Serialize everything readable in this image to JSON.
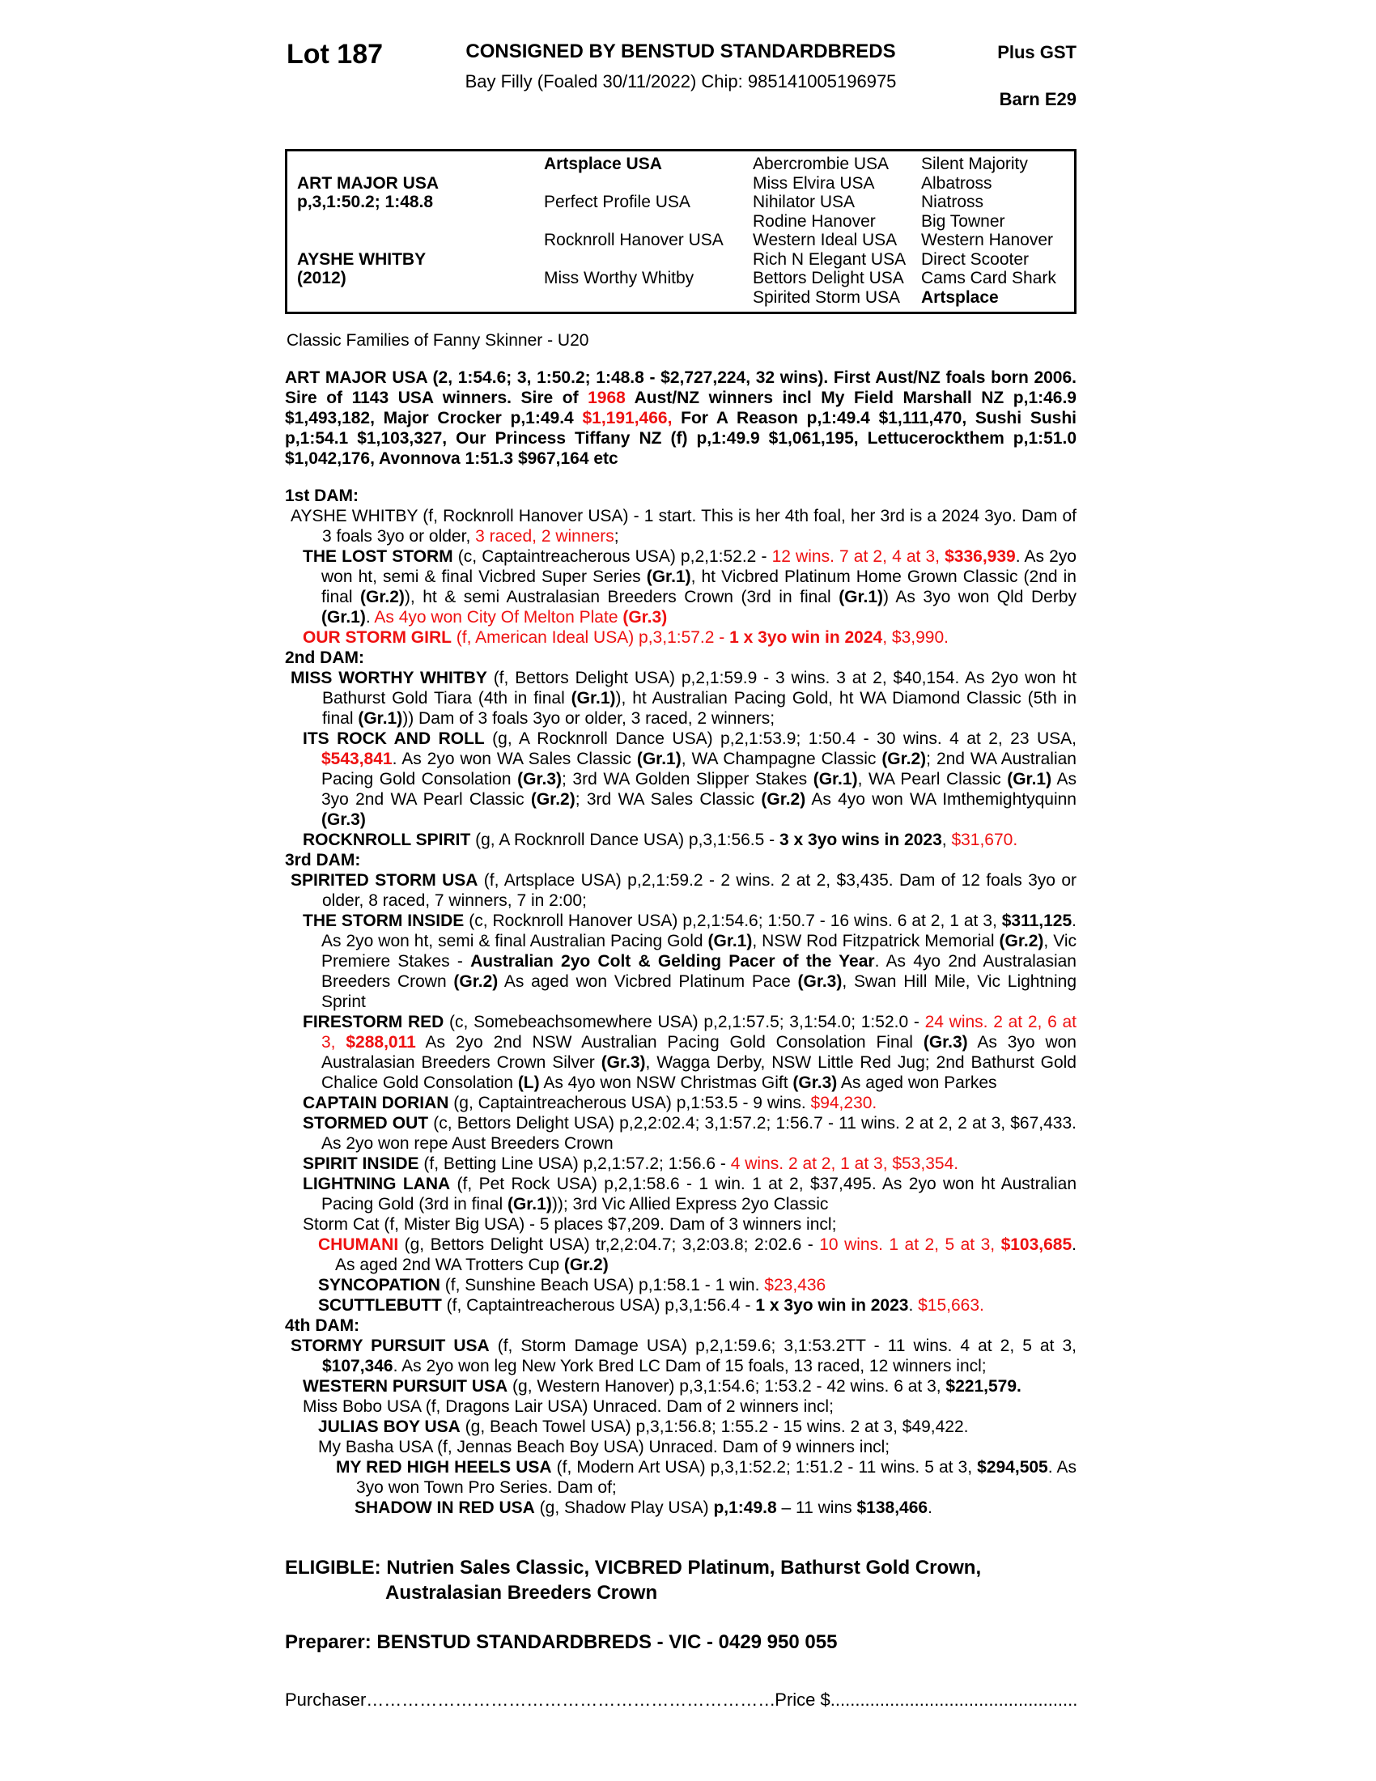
{
  "colors": {
    "background": "#ffffff",
    "text": "#000000",
    "accent_red": "#ee1111"
  },
  "header": {
    "lot": "Lot 187",
    "consigned": "CONSIGNED BY BENSTUD STANDARDBREDS",
    "subtitle": "Bay Filly (Foaled 30/11/2022) Chip: 985141005196975",
    "plus_gst": "Plus GST",
    "barn": "Barn E29"
  },
  "pedigree": {
    "col1": [
      {
        "lines": [
          "ART MAJOR USA",
          "p,3,1:50.2; 1:48.8"
        ]
      },
      {
        "lines": [
          "AYSHE WHITBY",
          "(2012)"
        ]
      }
    ],
    "col2": [
      "Artsplace USA",
      "Perfect Profile USA",
      "Rocknroll Hanover USA",
      "Miss Worthy Whitby"
    ],
    "col2_bold": [
      true,
      false,
      false,
      false
    ],
    "col3": [
      "Abercrombie USA",
      "Miss Elvira USA",
      "Nihilator USA",
      "Rodine Hanover",
      "Western Ideal USA",
      "Rich N Elegant USA",
      "Bettors Delight USA",
      "Spirited Storm USA"
    ],
    "col4": [
      "Silent Majority",
      "Albatross",
      "Niatross",
      "Big Towner",
      "Western Hanover",
      "Direct Scooter",
      "Cams Card Shark",
      "Artsplace"
    ],
    "col4_bold": [
      false,
      false,
      false,
      false,
      false,
      false,
      false,
      true
    ]
  },
  "family_line": "Classic Families of Fanny Skinner - U20",
  "sire_paragraph": [
    {
      "t": "ART MAJOR USA (2, 1:54.6; 3, 1:50.2; 1:48.8 - $2,727,224, 32 wins). First Aust/NZ foals born 2006. Sire of 1143 USA winners. Sire of ",
      "s": "b"
    },
    {
      "t": "1968",
      "s": "br"
    },
    {
      "t": " Aust/NZ winners incl My Field Marshall NZ p,1:46.9 $1,493,182, Major Crocker p,1:49.4 ",
      "s": "b"
    },
    {
      "t": "$1,191,466,",
      "s": "br"
    },
    {
      "t": " For A Reason p,1:49.4 $1,111,470, Sushi Sushi p,1:54.1 $1,103,327, Our Princess Tiffany NZ (f) p,1:49.9 $1,061,195, Lettucerockthem p,1:51.0 $1,042,176, Avonnova 1:51.3 $967,164 etc",
      "s": "b"
    }
  ],
  "sections": [
    {
      "heading": "1st DAM:",
      "entries": [
        {
          "indent": "dam",
          "segments": [
            {
              "t": "AYSHE WHITBY (f, Rocknroll Hanover USA) - 1 start. This is her 4th foal, her 3rd is a 2024 3yo. Dam of 3 foals 3yo or older, ",
              "s": ""
            },
            {
              "t": "3 raced, 2 winners",
              "s": "r"
            },
            {
              "t": ";",
              "s": ""
            }
          ]
        },
        {
          "indent": "p1",
          "segments": [
            {
              "t": "THE LOST STORM",
              "s": "b"
            },
            {
              "t": " (c, Captaintreacherous USA) p,2,1:52.2 - ",
              "s": ""
            },
            {
              "t": "12 wins. 7 at 2, 4 at 3, ",
              "s": "r"
            },
            {
              "t": "$336,939",
              "s": "br"
            },
            {
              "t": ". As 2yo won ht, semi & final Vicbred Super Series ",
              "s": ""
            },
            {
              "t": "(Gr.1)",
              "s": "b"
            },
            {
              "t": ", ht Vicbred Platinum Home Grown Classic (2nd in final ",
              "s": ""
            },
            {
              "t": "(Gr.2)",
              "s": "b"
            },
            {
              "t": "), ht & semi Australasian Breeders Crown (3rd in final ",
              "s": ""
            },
            {
              "t": "(Gr.1)",
              "s": "b"
            },
            {
              "t": ") As 3yo won Qld Derby ",
              "s": ""
            },
            {
              "t": "(Gr.1)",
              "s": "b"
            },
            {
              "t": ". ",
              "s": ""
            },
            {
              "t": "As 4yo won City Of Melton Plate ",
              "s": "r"
            },
            {
              "t": "(Gr.3)",
              "s": "br"
            }
          ]
        },
        {
          "indent": "p1",
          "segments": [
            {
              "t": "OUR STORM GIRL",
              "s": "br"
            },
            {
              "t": " (f, American Ideal USA) p,3,1:57.2 - ",
              "s": "r"
            },
            {
              "t": "1 x 3yo win in 2024",
              "s": "br"
            },
            {
              "t": ", $3,990.",
              "s": "r"
            }
          ]
        }
      ]
    },
    {
      "heading": "2nd DAM:",
      "entries": [
        {
          "indent": "dam",
          "segments": [
            {
              "t": "MISS WORTHY WHITBY",
              "s": "b"
            },
            {
              "t": " (f, Bettors Delight USA) p,2,1:59.9 - 3 wins. 3 at 2, $40,154. As 2yo won ht Bathurst Gold Tiara (4th in final ",
              "s": ""
            },
            {
              "t": "(Gr.1)",
              "s": "b"
            },
            {
              "t": "), ht Australian Pacing Gold, ht WA Diamond Classic (5th in final ",
              "s": ""
            },
            {
              "t": "(Gr.1)",
              "s": "b"
            },
            {
              "t": ")) Dam of 3 foals 3yo or older, 3 raced, 2 winners;",
              "s": ""
            }
          ]
        },
        {
          "indent": "p1",
          "segments": [
            {
              "t": "ITS ROCK AND ROLL",
              "s": "b"
            },
            {
              "t": " (g, A Rocknroll Dance USA) p,2,1:53.9; 1:50.4 - 30 wins. 4 at 2, 23 USA, ",
              "s": ""
            },
            {
              "t": "$543,841",
              "s": "br"
            },
            {
              "t": ". As 2yo won WA Sales Classic ",
              "s": ""
            },
            {
              "t": "(Gr.1)",
              "s": "b"
            },
            {
              "t": ", WA Champagne Classic ",
              "s": ""
            },
            {
              "t": "(Gr.2)",
              "s": "b"
            },
            {
              "t": "; 2nd WA Australian Pacing Gold Consolation ",
              "s": ""
            },
            {
              "t": "(Gr.3)",
              "s": "b"
            },
            {
              "t": "; 3rd WA Golden Slipper Stakes ",
              "s": ""
            },
            {
              "t": "(Gr.1)",
              "s": "b"
            },
            {
              "t": ", WA Pearl Classic ",
              "s": ""
            },
            {
              "t": "(Gr.1)",
              "s": "b"
            },
            {
              "t": " As 3yo 2nd WA Pearl Classic ",
              "s": ""
            },
            {
              "t": "(Gr.2)",
              "s": "b"
            },
            {
              "t": "; 3rd WA Sales Classic ",
              "s": ""
            },
            {
              "t": "(Gr.2)",
              "s": "b"
            },
            {
              "t": " As 4yo won WA Imthemightyquinn ",
              "s": ""
            },
            {
              "t": "(Gr.3)",
              "s": "b"
            }
          ]
        },
        {
          "indent": "p1",
          "segments": [
            {
              "t": "ROCKNROLL SPIRIT",
              "s": "b"
            },
            {
              "t": " (g, A Rocknroll Dance USA) p,3,1:56.5 - ",
              "s": ""
            },
            {
              "t": "3 x 3yo wins in 2023",
              "s": "b"
            },
            {
              "t": ", ",
              "s": ""
            },
            {
              "t": "$31,670.",
              "s": "r"
            }
          ]
        }
      ]
    },
    {
      "heading": "3rd DAM:",
      "entries": [
        {
          "indent": "dam",
          "segments": [
            {
              "t": "SPIRITED STORM USA",
              "s": "b"
            },
            {
              "t": " (f, Artsplace USA) p,2,1:59.2 - 2 wins. 2 at 2, $3,435. Dam of 12 foals 3yo or older, 8 raced, 7 winners, 7 in 2:00;",
              "s": ""
            }
          ]
        },
        {
          "indent": "p1",
          "segments": [
            {
              "t": "THE STORM INSIDE",
              "s": "b"
            },
            {
              "t": " (c, Rocknroll Hanover USA) p,2,1:54.6; 1:50.7 - 16 wins. 6 at 2, 1 at 3, ",
              "s": ""
            },
            {
              "t": "$311,125",
              "s": "b"
            },
            {
              "t": ". As 2yo won ht, semi & final Australian Pacing Gold ",
              "s": ""
            },
            {
              "t": "(Gr.1)",
              "s": "b"
            },
            {
              "t": ", NSW Rod Fitzpatrick Memorial ",
              "s": ""
            },
            {
              "t": "(Gr.2)",
              "s": "b"
            },
            {
              "t": ", Vic Premiere Stakes - ",
              "s": ""
            },
            {
              "t": "Australian 2yo Colt & Gelding Pacer of the Year",
              "s": "b"
            },
            {
              "t": ". As 4yo 2nd Australasian Breeders Crown ",
              "s": ""
            },
            {
              "t": "(Gr.2)",
              "s": "b"
            },
            {
              "t": " As aged won Vicbred Platinum Pace ",
              "s": ""
            },
            {
              "t": "(Gr.3)",
              "s": "b"
            },
            {
              "t": ", Swan Hill Mile, Vic Lightning Sprint",
              "s": ""
            }
          ]
        },
        {
          "indent": "p1",
          "segments": [
            {
              "t": "FIRESTORM RED",
              "s": "b"
            },
            {
              "t": " (c, Somebeachsomewhere USA) p,2,1:57.5; 3,1:54.0; 1:52.0 - ",
              "s": ""
            },
            {
              "t": "24 wins. 2 at 2, 6 at 3, ",
              "s": "r"
            },
            {
              "t": "$288,011",
              "s": "br"
            },
            {
              "t": " As 2yo 2nd NSW Australian Pacing Gold Consolation Final ",
              "s": ""
            },
            {
              "t": "(Gr.3)",
              "s": "b"
            },
            {
              "t": " As 3yo won Australasian Breeders Crown Silver ",
              "s": ""
            },
            {
              "t": "(Gr.3)",
              "s": "b"
            },
            {
              "t": ", Wagga Derby, NSW Little Red Jug; 2nd Bathurst Gold Chalice Gold Consolation ",
              "s": ""
            },
            {
              "t": "(L)",
              "s": "b"
            },
            {
              "t": " As 4yo won NSW Christmas Gift ",
              "s": ""
            },
            {
              "t": "(Gr.3)",
              "s": "b"
            },
            {
              "t": " As aged won Parkes",
              "s": ""
            }
          ]
        },
        {
          "indent": "p1",
          "segments": [
            {
              "t": "CAPTAIN DORIAN",
              "s": "b"
            },
            {
              "t": " (g, Captaintreacherous USA) p,1:53.5 - 9 wins. ",
              "s": ""
            },
            {
              "t": "$94,230.",
              "s": "r"
            }
          ]
        },
        {
          "indent": "p1",
          "segments": [
            {
              "t": "STORMED OUT",
              "s": "b"
            },
            {
              "t": " (c, Bettors Delight USA) p,2,2:02.4; 3,1:57.2; 1:56.7 - 11 wins. 2 at 2, 2 at 3, $67,433. As 2yo won repe Aust Breeders Crown",
              "s": ""
            }
          ]
        },
        {
          "indent": "p1",
          "segments": [
            {
              "t": "SPIRIT INSIDE",
              "s": "b"
            },
            {
              "t": " (f, Betting Line USA) p,2,1:57.2; 1:56.6 - ",
              "s": ""
            },
            {
              "t": "4 wins. 2 at 2, 1 at 3, $53,354.",
              "s": "r"
            }
          ]
        },
        {
          "indent": "p1",
          "segments": [
            {
              "t": "LIGHTNING LANA",
              "s": "b"
            },
            {
              "t": " (f, Pet Rock USA) p,2,1:58.6 - 1 win. 1 at 2, $37,495. As 2yo won ht Australian Pacing Gold (3rd in final ",
              "s": ""
            },
            {
              "t": "(Gr.1)",
              "s": "b"
            },
            {
              "t": ")); 3rd Vic Allied Express 2yo Classic",
              "s": ""
            }
          ]
        },
        {
          "indent": "p1",
          "segments": [
            {
              "t": "Storm Cat (f, Mister Big USA) - 5 places $7,209. Dam of 3 winners incl;",
              "s": ""
            }
          ]
        },
        {
          "indent": "p2",
          "segments": [
            {
              "t": "CHUMANI",
              "s": "br"
            },
            {
              "t": " (g, Bettors Delight USA) tr,2,2:04.7; 3,2:03.8; 2:02.6 - ",
              "s": ""
            },
            {
              "t": "10 wins. 1 at 2, 5 at 3, ",
              "s": "r"
            },
            {
              "t": "$103,685",
              "s": "br"
            },
            {
              "t": ". As aged 2nd WA Trotters Cup ",
              "s": ""
            },
            {
              "t": "(Gr.2)",
              "s": "b"
            }
          ]
        },
        {
          "indent": "p2",
          "segments": [
            {
              "t": "SYNCOPATION",
              "s": "b"
            },
            {
              "t": " (f, Sunshine Beach USA) p,1:58.1 - 1 win. ",
              "s": ""
            },
            {
              "t": "$23,436",
              "s": "r"
            }
          ]
        },
        {
          "indent": "p2",
          "segments": [
            {
              "t": "SCUTTLEBUTT",
              "s": "b"
            },
            {
              "t": " (f, Captaintreacherous USA) p,3,1:56.4 - ",
              "s": ""
            },
            {
              "t": "1 x 3yo win in 2023",
              "s": "b"
            },
            {
              "t": ". ",
              "s": ""
            },
            {
              "t": "$15,663.",
              "s": "r"
            }
          ]
        }
      ]
    },
    {
      "heading": "4th DAM:",
      "entries": [
        {
          "indent": "dam",
          "segments": [
            {
              "t": "STORMY PURSUIT USA",
              "s": "b"
            },
            {
              "t": " (f, Storm Damage USA) p,2,1:59.6; 3,1:53.2TT - 11 wins. 4 at 2, 5 at 3, ",
              "s": ""
            },
            {
              "t": "$107,346",
              "s": "b"
            },
            {
              "t": ". As 2yo won leg New York Bred LC Dam of 15 foals, 13 raced, 12 winners incl;",
              "s": ""
            }
          ]
        },
        {
          "indent": "p1",
          "segments": [
            {
              "t": "WESTERN PURSUIT USA",
              "s": "b"
            },
            {
              "t": " (g, Western Hanover) p,3,1:54.6; 1:53.2 - 42 wins. 6 at 3, ",
              "s": ""
            },
            {
              "t": "$221,579.",
              "s": "b"
            }
          ]
        },
        {
          "indent": "p1",
          "segments": [
            {
              "t": "Miss Bobo USA (f, Dragons Lair USA) Unraced. Dam of 2 winners incl;",
              "s": ""
            }
          ]
        },
        {
          "indent": "p2",
          "segments": [
            {
              "t": "JULIAS BOY USA",
              "s": "b"
            },
            {
              "t": " (g, Beach Towel USA) p,3,1:56.8; 1:55.2 - 15 wins. 2 at 3, $49,422.",
              "s": ""
            }
          ]
        },
        {
          "indent": "p2",
          "segments": [
            {
              "t": "My Basha USA (f, Jennas Beach Boy USA) Unraced. Dam of 9 winners incl;",
              "s": ""
            }
          ]
        },
        {
          "indent": "p3",
          "segments": [
            {
              "t": "MY RED HIGH HEELS USA",
              "s": "b"
            },
            {
              "t": " (f, Modern Art USA) p,3,1:52.2; 1:51.2 - 11 wins. 5 at 3, ",
              "s": ""
            },
            {
              "t": "$294,505",
              "s": "b"
            },
            {
              "t": ". As 3yo won Town Pro Series. Dam of;",
              "s": ""
            }
          ]
        },
        {
          "indent": "p4",
          "segments": [
            {
              "t": "SHADOW IN RED USA",
              "s": "b"
            },
            {
              "t": " (g, Shadow Play USA) ",
              "s": ""
            },
            {
              "t": "p,1:49.8",
              "s": "b"
            },
            {
              "t": " – 11 wins ",
              "s": ""
            },
            {
              "t": "$138,466",
              "s": "b"
            },
            {
              "t": ".",
              "s": ""
            }
          ]
        }
      ]
    }
  ],
  "eligible": {
    "line1": "ELIGIBLE: Nutrien Sales Classic, VICBRED Platinum, Bathurst Gold Crown,",
    "line2": "Australasian Breeders Crown"
  },
  "preparer": "Preparer: BENSTUD STANDARDBREDS - VIC - 0429 950 055",
  "purchaser": {
    "label": "Purchaser",
    "dots1": "……………………………………………………………………………………………",
    "price_label": "Price $",
    "dots2": "............................................................................"
  }
}
